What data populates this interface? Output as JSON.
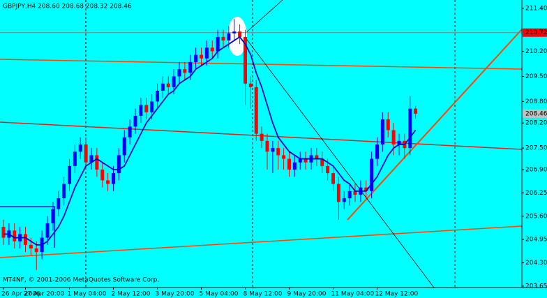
{
  "chart_data": {
    "type": "candlestick",
    "title": "GBPJPY,H4  208.60 208.68 208.32 208.46",
    "footer": "MT4NF, © 2001-2006 MetaQuotes Software Corp.",
    "categories": [
      "26 Apr 2006",
      null,
      null,
      null,
      "27 Apr 20:00",
      null,
      null,
      null,
      null,
      null,
      null,
      null,
      "1 May 04:00",
      null,
      null,
      null,
      null,
      null,
      null,
      null,
      "2 May 12:00",
      null,
      null,
      null,
      null,
      null,
      null,
      null,
      "3 May 20:00",
      null,
      null,
      null,
      null,
      null,
      null,
      null,
      "5 May 04:00",
      null,
      null,
      null,
      null,
      null,
      null,
      null,
      "8 May 12:00",
      null,
      null,
      null,
      null,
      null,
      null,
      null,
      "9 May 20:00",
      null,
      null,
      null,
      null,
      null,
      null,
      null,
      "11 May 04:00",
      null,
      null,
      null,
      null,
      null,
      null,
      null,
      "12 May 12:00",
      null,
      null,
      null,
      null,
      null,
      null,
      null
    ],
    "open": [
      205.3,
      205.0,
      205.2,
      204.9,
      205.1,
      204.8,
      204.7,
      204.6,
      205.0,
      205.4,
      205.8,
      206.1,
      206.5,
      207.0,
      207.4,
      207.6,
      207.1,
      207.3,
      206.9,
      206.6,
      206.5,
      206.8,
      207.3,
      207.8,
      208.1,
      208.4,
      208.7,
      208.5,
      208.8,
      209.1,
      209.3,
      209.2,
      209.5,
      209.7,
      209.6,
      209.9,
      210.1,
      210.0,
      210.3,
      210.2,
      210.6,
      210.5,
      210.7,
      210.75,
      210.6,
      209.3,
      209.2,
      207.9,
      207.7,
      207.4,
      207.5,
      207.3,
      207.2,
      206.9,
      207.1,
      207.2,
      207.1,
      207.3,
      207.2,
      207.0,
      206.8,
      206.5,
      206.0,
      206.1,
      206.3,
      206.2,
      206.4,
      206.3,
      207.2,
      207.6,
      208.3,
      208.0,
      207.6,
      207.7,
      207.5,
      208.6
    ],
    "high": [
      205.5,
      205.4,
      205.4,
      205.3,
      205.3,
      205.0,
      204.9,
      205.2,
      205.6,
      206.0,
      206.3,
      206.7,
      207.2,
      207.6,
      207.8,
      207.8,
      207.5,
      207.5,
      207.1,
      206.8,
      207.0,
      207.5,
      208.0,
      208.3,
      208.6,
      208.9,
      208.9,
      209.0,
      209.3,
      209.5,
      209.5,
      209.7,
      209.9,
      209.9,
      210.1,
      210.3,
      210.3,
      210.5,
      210.5,
      210.8,
      210.8,
      210.9,
      211.1,
      210.95,
      210.8,
      209.5,
      209.4,
      208.1,
      207.9,
      207.7,
      207.7,
      207.5,
      207.4,
      207.3,
      207.4,
      207.4,
      207.5,
      207.5,
      207.4,
      207.2,
      207.0,
      206.7,
      206.3,
      206.5,
      206.5,
      206.6,
      206.6,
      207.4,
      207.8,
      208.5,
      208.5,
      208.2,
      207.9,
      207.9,
      208.95,
      208.68
    ],
    "low": [
      204.8,
      204.8,
      204.7,
      204.7,
      204.6,
      204.5,
      204.1,
      204.4,
      204.8,
      205.2,
      205.6,
      205.9,
      206.3,
      206.8,
      207.2,
      206.9,
      206.9,
      206.7,
      206.4,
      206.3,
      206.3,
      206.6,
      207.1,
      207.6,
      207.9,
      208.2,
      208.3,
      208.3,
      208.6,
      208.9,
      209.0,
      209.0,
      209.3,
      209.4,
      209.4,
      209.7,
      209.8,
      209.8,
      210.0,
      210.0,
      210.3,
      210.3,
      210.5,
      210.4,
      208.7,
      208.6,
      207.7,
      207.5,
      206.9,
      206.8,
      206.9,
      206.9,
      206.7,
      206.7,
      206.9,
      206.9,
      206.9,
      207.0,
      206.8,
      206.6,
      206.3,
      205.5,
      205.8,
      205.9,
      206.0,
      206.0,
      206.1,
      206.1,
      207.0,
      207.4,
      207.8,
      207.3,
      207.3,
      207.2,
      207.3,
      208.32
    ],
    "close": [
      205.0,
      205.2,
      204.9,
      205.1,
      204.8,
      204.7,
      204.6,
      205.0,
      205.4,
      205.8,
      206.1,
      206.5,
      207.0,
      207.4,
      207.6,
      207.1,
      207.3,
      206.9,
      206.6,
      206.5,
      206.8,
      207.3,
      207.8,
      208.1,
      208.4,
      208.7,
      208.5,
      208.8,
      209.1,
      209.3,
      209.2,
      209.5,
      209.7,
      209.6,
      209.9,
      210.1,
      210.0,
      210.3,
      210.2,
      210.6,
      210.5,
      210.7,
      210.75,
      210.6,
      209.3,
      209.2,
      207.9,
      207.7,
      207.4,
      207.5,
      207.3,
      207.2,
      206.9,
      207.1,
      207.2,
      207.1,
      207.3,
      207.2,
      207.0,
      206.8,
      206.5,
      206.0,
      206.1,
      206.3,
      206.2,
      206.4,
      206.3,
      207.2,
      207.6,
      208.3,
      208.0,
      207.6,
      207.7,
      207.5,
      208.6,
      208.46
    ],
    "up_color": "#0000ff",
    "down_color": "#ff0000",
    "moving_average": {
      "color": "#0000cc",
      "values": [
        205.1,
        205.1,
        205.0,
        205.0,
        205.0,
        204.9,
        204.8,
        204.8,
        204.9,
        205.1,
        205.3,
        205.6,
        206.0,
        206.4,
        206.7,
        207.0,
        207.1,
        207.2,
        207.1,
        207.0,
        206.9,
        206.9,
        207.0,
        207.3,
        207.6,
        207.9,
        208.2,
        208.4,
        208.6,
        208.8,
        209.0,
        209.1,
        209.3,
        209.4,
        209.5,
        209.7,
        209.8,
        209.9,
        210.0,
        210.2,
        210.3,
        210.4,
        210.5,
        210.6,
        210.4,
        210.1,
        209.6,
        209.2,
        208.7,
        208.2,
        207.8,
        207.6,
        207.4,
        207.3,
        207.2,
        207.2,
        207.2,
        207.2,
        207.2,
        207.1,
        207.0,
        206.8,
        206.6,
        206.5,
        206.3,
        206.3,
        206.3,
        206.5,
        206.7,
        207.0,
        207.3,
        207.5,
        207.6,
        207.6,
        207.8,
        208.0
      ]
    },
    "ylim": [
      203.61,
      211.63
    ],
    "yticks": [
      {
        "value": 211.4,
        "label": "211.40"
      },
      {
        "value": 210.2,
        "label": "210.20"
      },
      {
        "value": 209.5,
        "label": "209.50"
      },
      {
        "value": 208.8,
        "label": "208.80"
      },
      {
        "value": 208.2,
        "label": "208.20"
      },
      {
        "value": 207.5,
        "label": "207.50"
      },
      {
        "value": 206.9,
        "label": "206.90"
      },
      206.25,
      {
        "value": 205.6,
        "label": "205.60"
      },
      204.95,
      {
        "value": 204.3,
        "label": "204.30"
      },
      203.65
    ],
    "horizontal_line": 210.72,
    "bid": 208.46,
    "background": "#00ffff"
  }
}
